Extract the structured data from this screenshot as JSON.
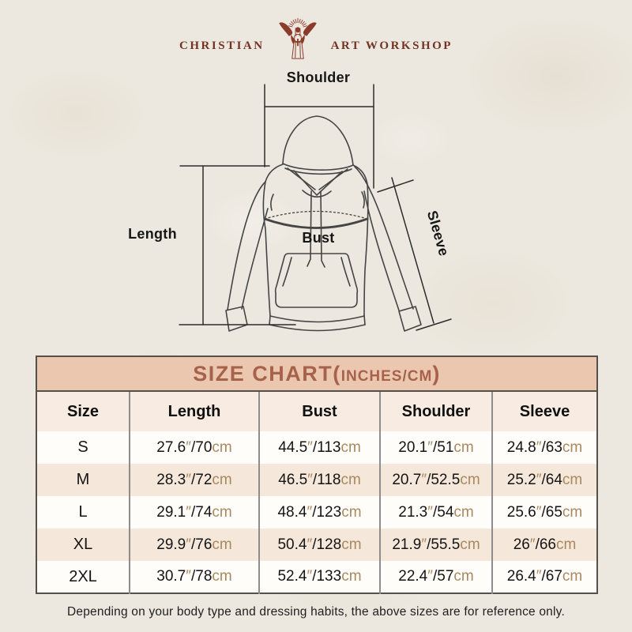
{
  "brand": {
    "name_left": "CHRISTIAN",
    "name_right": "ART WORKSHOP",
    "logo_icon": "jesus-open-arms-rays-cross-icon",
    "color": "#8c3a2a"
  },
  "diagram": {
    "labels": {
      "shoulder": "Shoulder",
      "length": "Length",
      "bust": "Bust",
      "sleeve": "Sleeve"
    }
  },
  "size_chart": {
    "title_main": "SIZE CHART(",
    "title_units": "INCHES/CM",
    "title_close": ")",
    "inch_mark": "″",
    "slash": "/",
    "cm_suffix": "cm",
    "colors": {
      "title_band_bg": "#ebc7af",
      "title_text": "#a7624b",
      "header_row_bg": "#f8ece2",
      "alt_row_bg": "#f5e8da",
      "unit_text": "#a8895f"
    }
  },
  "chart_data": {
    "type": "table",
    "title": "SIZE CHART(INCHES/CM)",
    "units": "inches/cm",
    "columns": [
      "Size",
      "Length",
      "Bust",
      "Shoulder",
      "Sleeve"
    ],
    "measure_keys": [
      "length",
      "bust",
      "shoulder",
      "sleeve"
    ],
    "rows": [
      {
        "size": "S",
        "length": [
          27.6,
          70
        ],
        "bust": [
          44.5,
          113
        ],
        "shoulder": [
          20.1,
          51
        ],
        "sleeve": [
          24.8,
          63
        ]
      },
      {
        "size": "M",
        "length": [
          28.3,
          72
        ],
        "bust": [
          46.5,
          118
        ],
        "shoulder": [
          20.7,
          52.5
        ],
        "sleeve": [
          25.2,
          64
        ]
      },
      {
        "size": "L",
        "length": [
          29.1,
          74
        ],
        "bust": [
          48.4,
          123
        ],
        "shoulder": [
          21.3,
          54
        ],
        "sleeve": [
          25.6,
          65
        ]
      },
      {
        "size": "XL",
        "length": [
          29.9,
          76
        ],
        "bust": [
          50.4,
          128
        ],
        "shoulder": [
          21.9,
          55.5
        ],
        "sleeve": [
          26,
          66
        ]
      },
      {
        "size": "2XL",
        "length": [
          30.7,
          78
        ],
        "bust": [
          52.4,
          133
        ],
        "shoulder": [
          22.4,
          57
        ],
        "sleeve": [
          26.4,
          67
        ]
      }
    ]
  },
  "footer": {
    "note": "Depending on your body type and dressing habits, the above sizes are for reference only."
  }
}
